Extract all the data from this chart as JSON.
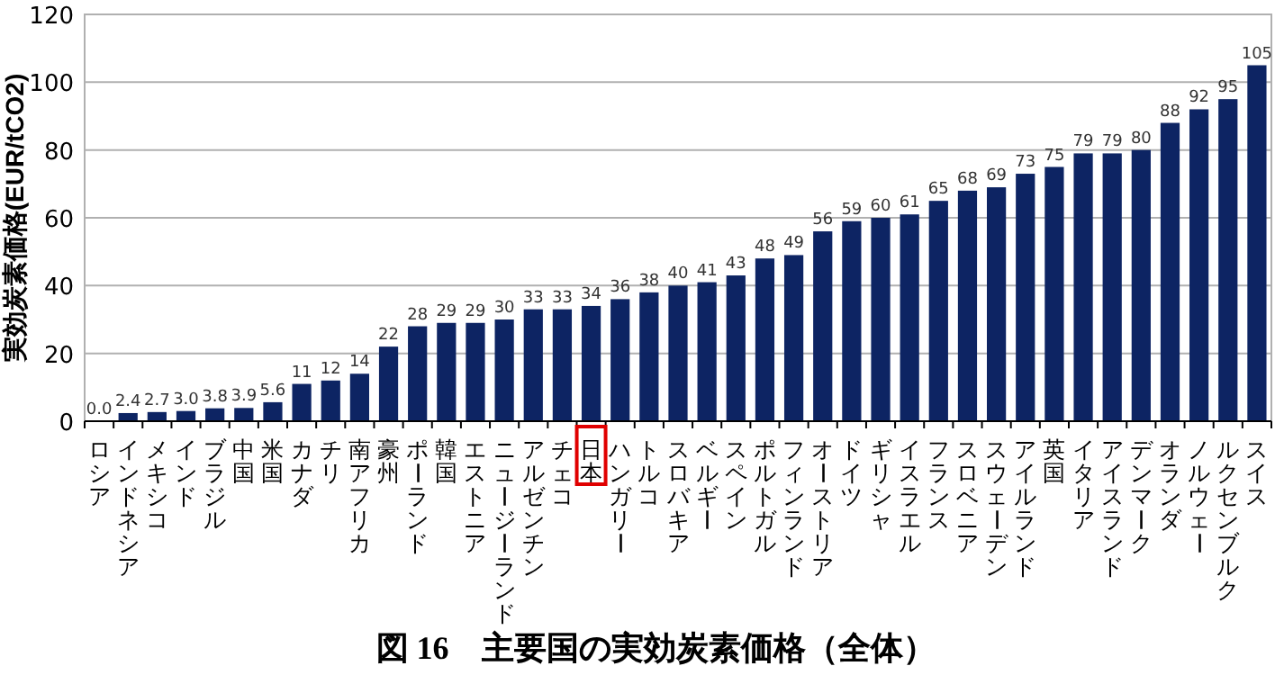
{
  "chart_data": {
    "type": "bar",
    "title": "図 16　主要国の実効炭素価格（全体）",
    "ylabel": "実効炭素価格(EUR/tCO2)",
    "categories": [
      "ロシア",
      "インドネシア",
      "メキシコ",
      "インド",
      "ブラジル",
      "中国",
      "米国",
      "カナダ",
      "チリ",
      "南アフリカ",
      "豪州",
      "ポーランド",
      "韓国",
      "エストニア",
      "ニュージーランド",
      "アルゼンチン",
      "チェコ",
      "日本",
      "ハンガリー",
      "トルコ",
      "スロバキア",
      "ベルギー",
      "スペイン",
      "ポルトガル",
      "フィンランド",
      "オーストリア",
      "ドイツ",
      "ギリシャ",
      "イスラエル",
      "フランス",
      "スロベニア",
      "スウェーデン",
      "アイルランド",
      "英国",
      "イタリア",
      "アイスランド",
      "デンマーク",
      "オランダ",
      "ノルウェー",
      "ルクセンブルク",
      "スイス"
    ],
    "values": [
      0.0,
      2.4,
      2.7,
      3.0,
      3.8,
      3.9,
      5.6,
      11,
      12,
      14,
      22,
      28,
      29,
      29,
      30,
      33,
      33,
      34,
      36,
      38,
      40,
      41,
      43,
      48,
      49,
      56,
      59,
      60,
      61,
      65,
      68,
      69,
      73,
      75,
      79,
      79,
      80,
      88,
      92,
      95,
      105
    ],
    "value_labels": [
      "0.0",
      "2.4",
      "2.7",
      "3.0",
      "3.8",
      "3.9",
      "5.6",
      "11",
      "12",
      "14",
      "22",
      "28",
      "29",
      "29",
      "30",
      "33",
      "33",
      "34",
      "36",
      "38",
      "40",
      "41",
      "43",
      "48",
      "49",
      "56",
      "59",
      "60",
      "61",
      "65",
      "68",
      "69",
      "73",
      "75",
      "79",
      "79",
      "80",
      "88",
      "92",
      "95",
      "105"
    ],
    "color": "#0d2463",
    "ylim": [
      0,
      120
    ],
    "yticks": [
      0,
      20,
      40,
      60,
      80,
      100,
      120
    ],
    "grid": "y"
  }
}
